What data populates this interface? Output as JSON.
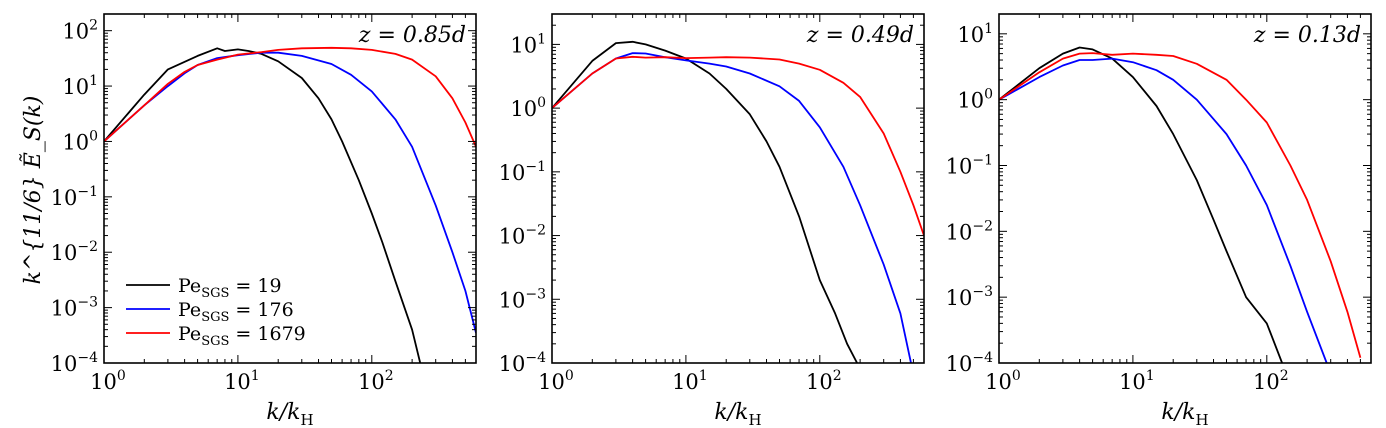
{
  "figure": {
    "ylabel": "k^{11/6} Ẽ_S(k)",
    "xlabel_main": "k/k",
    "xlabel_sub": "H"
  },
  "chart_data": [
    {
      "type": "line",
      "panel": "left",
      "annotation": "z = 0.85d",
      "xlabel": "k/kH",
      "ylabel": "k^{11/6} Ẽ_S(k)",
      "xscale": "log",
      "yscale": "log",
      "xlim": [
        1,
        600
      ],
      "ylim": [
        0.0001,
        200
      ],
      "x_ticks": [
        1,
        10,
        100
      ],
      "x_tick_labels": [
        [
          "10",
          "0"
        ],
        [
          "10",
          "1"
        ],
        [
          "10",
          "2"
        ]
      ],
      "y_ticks": [
        0.0001,
        0.001,
        0.01,
        0.1,
        1,
        10,
        100
      ],
      "y_tick_labels": [
        [
          "10",
          "−4"
        ],
        [
          "10",
          "−3"
        ],
        [
          "10",
          "−2"
        ],
        [
          "10",
          "−1"
        ],
        [
          "10",
          "0"
        ],
        [
          "10",
          "1"
        ],
        [
          "10",
          "2"
        ]
      ],
      "legend": {
        "placement": "lower-left"
      },
      "series": [
        {
          "name": "Pe_SGS = 19",
          "legend_main": "Pe",
          "legend_sub": "SGS",
          "legend_value": " = 19",
          "color": "#000000",
          "x": [
            1,
            2,
            3,
            5,
            7,
            8,
            10,
            12,
            15,
            20,
            30,
            40,
            50,
            60,
            80,
            100,
            120,
            150,
            200,
            230
          ],
          "y": [
            1,
            7,
            20,
            35,
            48,
            43,
            46,
            43,
            38,
            28,
            14,
            6,
            2.5,
            1,
            0.2,
            0.05,
            0.015,
            0.003,
            0.0004,
            0.0001
          ]
        },
        {
          "name": "Pe_SGS = 176",
          "legend_main": "Pe",
          "legend_sub": "SGS",
          "legend_value": " = 176",
          "color": "#0000ff",
          "x": [
            1,
            2,
            3,
            4,
            5,
            7,
            10,
            15,
            20,
            30,
            50,
            70,
            100,
            150,
            200,
            300,
            400,
            500,
            600
          ],
          "y": [
            1,
            4.5,
            10,
            17,
            24,
            32,
            36,
            40,
            40,
            35,
            25,
            16,
            8,
            2.5,
            0.8,
            0.07,
            0.01,
            0.002,
            0.00035
          ]
        },
        {
          "name": "Pe_SGS = 1679",
          "legend_main": "Pe",
          "legend_sub": "SGS",
          "legend_value": " = 1679",
          "color": "#ff0000",
          "x": [
            1,
            2,
            3,
            4,
            5,
            7,
            10,
            15,
            20,
            30,
            50,
            70,
            100,
            150,
            200,
            300,
            400,
            500,
            600
          ],
          "y": [
            1,
            4.5,
            11,
            18,
            24,
            30,
            37,
            41,
            45,
            48,
            49,
            48,
            45,
            38,
            30,
            15,
            6,
            2.2,
            0.8
          ]
        }
      ]
    },
    {
      "type": "line",
      "panel": "middle",
      "annotation": "z = 0.49d",
      "xlabel": "k/kH",
      "xscale": "log",
      "yscale": "log",
      "xlim": [
        1,
        600
      ],
      "ylim": [
        0.0001,
        30
      ],
      "x_ticks": [
        1,
        10,
        100
      ],
      "x_tick_labels": [
        [
          "10",
          "0"
        ],
        [
          "10",
          "1"
        ],
        [
          "10",
          "2"
        ]
      ],
      "y_ticks": [
        0.0001,
        0.001,
        0.01,
        0.1,
        1,
        10
      ],
      "y_tick_labels": [
        [
          "10",
          "−4"
        ],
        [
          "10",
          "−3"
        ],
        [
          "10",
          "−2"
        ],
        [
          "10",
          "−1"
        ],
        [
          "10",
          "0"
        ],
        [
          "10",
          "1"
        ]
      ],
      "series": [
        {
          "name": "Pe_SGS = 19",
          "color": "#000000",
          "x": [
            1,
            2,
            3,
            4,
            5,
            7,
            10,
            15,
            20,
            30,
            40,
            50,
            70,
            100,
            130,
            160,
            190
          ],
          "y": [
            1,
            5.5,
            10.5,
            11,
            10,
            8,
            6,
            3.5,
            2,
            0.8,
            0.3,
            0.12,
            0.02,
            0.002,
            0.0006,
            0.0002,
            0.0001
          ]
        },
        {
          "name": "Pe_SGS = 176",
          "color": "#0000ff",
          "x": [
            1,
            2,
            3,
            4,
            5,
            7,
            10,
            15,
            20,
            30,
            50,
            70,
            100,
            150,
            200,
            300,
            400,
            480
          ],
          "y": [
            1,
            3.5,
            6,
            7.3,
            7.2,
            6.3,
            5.6,
            5,
            4.5,
            3.5,
            2.2,
            1.3,
            0.5,
            0.12,
            0.03,
            0.0035,
            0.0006,
            0.0001
          ]
        },
        {
          "name": "Pe_SGS = 1679",
          "color": "#ff0000",
          "x": [
            1,
            2,
            3,
            4,
            5,
            7,
            10,
            15,
            20,
            30,
            50,
            70,
            100,
            150,
            200,
            300,
            400,
            500,
            600
          ],
          "y": [
            1,
            3.5,
            6,
            6.4,
            6.2,
            6.3,
            6.1,
            6.2,
            6.3,
            6.2,
            5.8,
            5,
            4,
            2.5,
            1.5,
            0.4,
            0.1,
            0.03,
            0.01
          ]
        }
      ]
    },
    {
      "type": "line",
      "panel": "right",
      "annotation": "z = 0.13d",
      "xlabel": "k/kH",
      "xscale": "log",
      "yscale": "log",
      "xlim": [
        1,
        600
      ],
      "ylim": [
        0.0001,
        20
      ],
      "x_ticks": [
        1,
        10,
        100
      ],
      "x_tick_labels": [
        [
          "10",
          "0"
        ],
        [
          "10",
          "1"
        ],
        [
          "10",
          "2"
        ]
      ],
      "y_ticks": [
        0.0001,
        0.001,
        0.01,
        0.1,
        1,
        10
      ],
      "y_tick_labels": [
        [
          "10",
          "−4"
        ],
        [
          "10",
          "−3"
        ],
        [
          "10",
          "−2"
        ],
        [
          "10",
          "−1"
        ],
        [
          "10",
          "0"
        ],
        [
          "10",
          "1"
        ]
      ],
      "series": [
        {
          "name": "Pe_SGS = 19",
          "color": "#000000",
          "x": [
            1,
            2,
            3,
            4,
            5,
            7,
            10,
            15,
            20,
            30,
            40,
            50,
            70,
            100,
            130
          ],
          "y": [
            1,
            3,
            5,
            6.2,
            5.8,
            4.2,
            2.2,
            0.8,
            0.3,
            0.06,
            0.015,
            0.005,
            0.001,
            0.0004,
            0.0001
          ]
        },
        {
          "name": "Pe_SGS = 176",
          "color": "#0000ff",
          "x": [
            1,
            2,
            3,
            4,
            5,
            7,
            10,
            15,
            20,
            30,
            50,
            70,
            100,
            150,
            200,
            280
          ],
          "y": [
            1,
            2.2,
            3.3,
            4,
            4,
            4.2,
            3.7,
            2.8,
            2,
            1,
            0.3,
            0.1,
            0.025,
            0.003,
            0.0006,
            0.0001
          ]
        },
        {
          "name": "Pe_SGS = 1679",
          "color": "#ff0000",
          "x": [
            1,
            2,
            3,
            4,
            5,
            7,
            10,
            15,
            20,
            30,
            50,
            70,
            100,
            150,
            200,
            300,
            400,
            500
          ],
          "y": [
            1,
            2.6,
            4.2,
            5,
            5.1,
            4.8,
            5,
            4.8,
            4.6,
            3.5,
            2,
            1,
            0.45,
            0.1,
            0.03,
            0.0035,
            0.0006,
            0.00012
          ]
        }
      ]
    }
  ]
}
